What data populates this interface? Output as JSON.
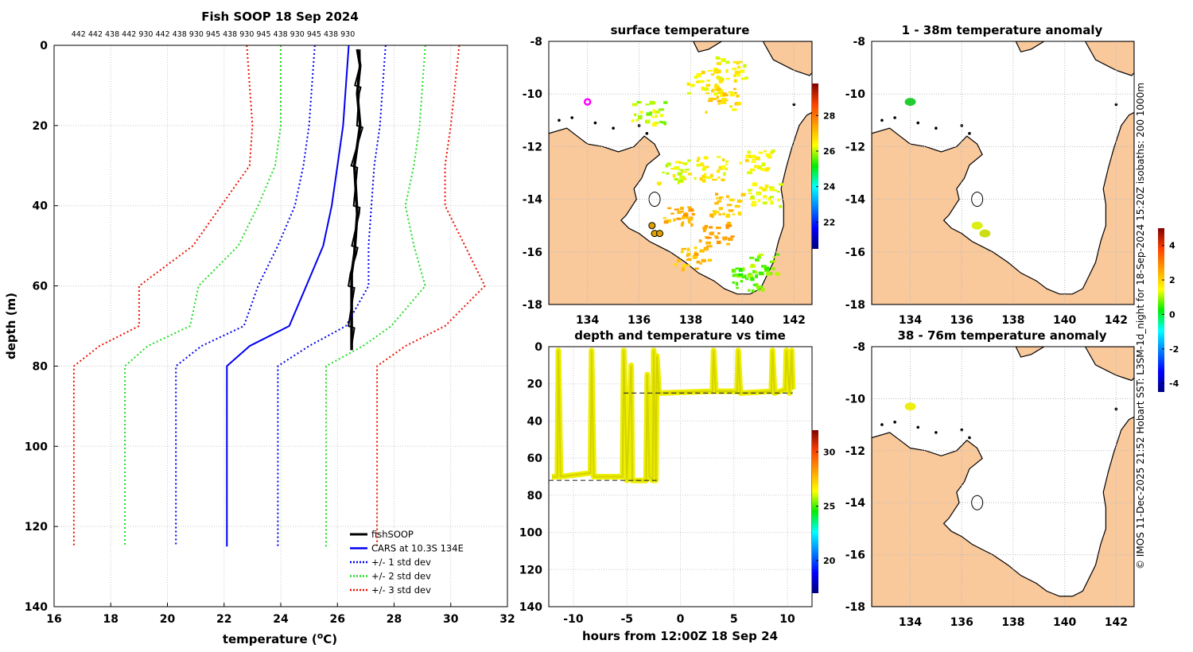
{
  "credit": "© IMOS 11-Dec-2025 21:52 Hobart SST: L3SM-1d_night for 18-Sep-2024 15:20Z isobaths: 200  1000m",
  "colors": {
    "land": "#f9c89b",
    "fish": "#000000",
    "cars": "#0000ee",
    "std1": "#0000ee",
    "std2": "#22dd22",
    "std3": "#ee1100",
    "track": "#eeee00"
  },
  "chart_data": [
    {
      "id": "profile",
      "type": "line",
      "title": "Fish SOOP 18 Sep 2024",
      "serials_text": "442 442 438 442 930 442 438 930 945 438 930 945 438 930 945 438 930",
      "xlabel": "temperature (°C)",
      "xlabel_main": "temperature (",
      "xlabel_unit": "o",
      "xlabel_end": "C)",
      "ylabel": "depth (m)",
      "xlim": [
        16,
        32
      ],
      "ylim": [
        140,
        0
      ],
      "xticks": [
        "16",
        "18",
        "20",
        "22",
        "24",
        "26",
        "28",
        "30",
        "32"
      ],
      "yticks": [
        "0",
        "20",
        "40",
        "60",
        "80",
        "100",
        "120",
        "140"
      ],
      "series": [
        {
          "name": "fishSOOP",
          "legend": "fishSOOP",
          "color": "#000000",
          "dash": "",
          "width": 3.5,
          "points": [
            [
              26.7,
              1
            ],
            [
              26.8,
              5
            ],
            [
              26.7,
              12
            ],
            [
              26.8,
              20
            ],
            [
              26.6,
              30
            ],
            [
              26.7,
              42
            ],
            [
              26.6,
              52
            ],
            [
              26.5,
              57
            ],
            [
              26.5,
              63
            ],
            [
              26.5,
              70
            ],
            [
              26.5,
              76
            ]
          ]
        },
        {
          "name": "CARS",
          "legend": "CARS at 10.3S 134E",
          "color": "#0000ee",
          "dash": "",
          "width": 2,
          "points": [
            [
              26.4,
              0
            ],
            [
              26.2,
              20
            ],
            [
              26.0,
              30
            ],
            [
              25.8,
              40
            ],
            [
              25.5,
              50
            ],
            [
              24.9,
              60
            ],
            [
              24.3,
              70
            ],
            [
              22.9,
              75
            ],
            [
              22.1,
              80
            ],
            [
              22.1,
              125
            ]
          ]
        },
        {
          "name": "std1_low",
          "legend": "+/- 1 std dev",
          "color": "#0000ee",
          "dash": "2,3",
          "width": 2,
          "points": [
            [
              25.2,
              0
            ],
            [
              25.0,
              20
            ],
            [
              24.8,
              30
            ],
            [
              24.5,
              40
            ],
            [
              23.9,
              50
            ],
            [
              23.2,
              60
            ],
            [
              22.7,
              70
            ],
            [
              21.2,
              75
            ],
            [
              20.3,
              80
            ],
            [
              20.3,
              125
            ]
          ]
        },
        {
          "name": "std1_high",
          "legend": "",
          "color": "#0000ee",
          "dash": "2,3",
          "width": 2,
          "points": [
            [
              27.7,
              0
            ],
            [
              27.5,
              20
            ],
            [
              27.3,
              30
            ],
            [
              27.2,
              40
            ],
            [
              27.1,
              50
            ],
            [
              27.1,
              60
            ],
            [
              26.3,
              70
            ],
            [
              25.0,
              75
            ],
            [
              23.9,
              80
            ],
            [
              23.9,
              125
            ]
          ]
        },
        {
          "name": "std2_low",
          "legend": "+/- 2 std dev",
          "color": "#22dd22",
          "dash": "2,3",
          "width": 2,
          "points": [
            [
              24.0,
              0
            ],
            [
              24.0,
              20
            ],
            [
              23.8,
              30
            ],
            [
              23.2,
              40
            ],
            [
              22.5,
              50
            ],
            [
              21.1,
              60
            ],
            [
              20.8,
              70
            ],
            [
              19.3,
              75
            ],
            [
              18.5,
              80
            ],
            [
              18.5,
              125
            ]
          ]
        },
        {
          "name": "std2_high",
          "legend": "",
          "color": "#22dd22",
          "dash": "2,3",
          "width": 2,
          "points": [
            [
              29.1,
              0
            ],
            [
              28.9,
              20
            ],
            [
              28.7,
              30
            ],
            [
              28.4,
              40
            ],
            [
              28.7,
              50
            ],
            [
              29.1,
              60
            ],
            [
              27.9,
              70
            ],
            [
              26.9,
              75
            ],
            [
              25.6,
              80
            ],
            [
              25.6,
              125
            ]
          ]
        },
        {
          "name": "std3_low",
          "legend": "+/- 3 std dev",
          "color": "#ee1100",
          "dash": "2,3",
          "width": 2,
          "points": [
            [
              22.8,
              0
            ],
            [
              23.0,
              20
            ],
            [
              22.9,
              30
            ],
            [
              21.9,
              40
            ],
            [
              20.9,
              50
            ],
            [
              19.0,
              60
            ],
            [
              19.0,
              70
            ],
            [
              17.6,
              75
            ],
            [
              16.7,
              80
            ],
            [
              16.7,
              125
            ]
          ]
        },
        {
          "name": "std3_high",
          "legend": "",
          "color": "#ee1100",
          "dash": "2,3",
          "width": 2,
          "points": [
            [
              30.3,
              0
            ],
            [
              30.0,
              20
            ],
            [
              29.8,
              30
            ],
            [
              29.8,
              40
            ],
            [
              30.5,
              50
            ],
            [
              31.2,
              60
            ],
            [
              29.8,
              70
            ],
            [
              28.4,
              75
            ],
            [
              27.4,
              80
            ],
            [
              27.4,
              125
            ]
          ]
        }
      ]
    },
    {
      "id": "surface",
      "type": "heatmap",
      "title": "surface temperature",
      "xlim": [
        132.5,
        142.7
      ],
      "ylim": [
        -18,
        -8
      ],
      "xticks": [
        "134",
        "136",
        "138",
        "140",
        "142"
      ],
      "yticks": [
        "-8",
        "-10",
        "-12",
        "-14",
        "-16",
        "-18"
      ],
      "colorbar": {
        "range": [
          20.5,
          29.8
        ],
        "ticks": [
          "22",
          "24",
          "26",
          "28"
        ],
        "tick_values": [
          22,
          24,
          26,
          28
        ]
      },
      "marker": [
        134.0,
        -10.3
      ],
      "markers2": [
        [
          136.5,
          -15.0
        ],
        [
          136.6,
          -15.3
        ],
        [
          136.8,
          -15.3
        ]
      ]
    },
    {
      "id": "timeseries",
      "type": "scatter",
      "title": "depth and temperature vs time",
      "xlabel": "hours from 12:00Z 18 Sep 24",
      "xlim": [
        -12.3,
        12.3
      ],
      "ylim": [
        140,
        0
      ],
      "xticks": [
        "-10",
        "-5",
        "0",
        "5",
        "10"
      ],
      "yticks": [
        "0",
        "20",
        "40",
        "60",
        "80",
        "100",
        "120",
        "140"
      ],
      "colorbar": {
        "range": [
          17,
          32
        ],
        "ticks": [
          "20",
          "25",
          "30"
        ],
        "tick_values": [
          20,
          25,
          30
        ]
      },
      "bottom_dashes": [
        [
          -12.3,
          -2.2,
          72
        ]
      ],
      "top_dashes": [
        [
          -5.3,
          10.5,
          25
        ]
      ]
    },
    {
      "id": "anom1",
      "type": "heatmap",
      "title": "1 - 38m temperature anomaly",
      "xlim": [
        132.5,
        142.7
      ],
      "ylim": [
        -18,
        -8
      ],
      "xticks": [
        "134",
        "136",
        "138",
        "140",
        "142"
      ],
      "yticks": [
        "-8",
        "-10",
        "-12",
        "-14",
        "-16",
        "-18"
      ],
      "colorbar": {
        "range": [
          -4.5,
          5
        ],
        "ticks": [
          "-4",
          "-2",
          "0",
          "2",
          "4"
        ],
        "tick_values": [
          -4,
          -2,
          0,
          2,
          4
        ]
      },
      "spots": [
        [
          134.0,
          -10.3,
          "#22cc33"
        ],
        [
          136.6,
          -15.0,
          "#ddee11"
        ],
        [
          136.9,
          -15.3,
          "#ccdd11"
        ]
      ]
    },
    {
      "id": "anom2",
      "type": "heatmap",
      "title": "38 - 76m temperature anomaly",
      "xlim": [
        132.5,
        142.7
      ],
      "ylim": [
        -18,
        -8
      ],
      "xticks": [
        "134",
        "136",
        "138",
        "140",
        "142"
      ],
      "yticks": [
        "-8",
        "-10",
        "-12",
        "-14",
        "-16",
        "-18"
      ],
      "spots": [
        [
          134.0,
          -10.3,
          "#eeee11"
        ]
      ]
    }
  ]
}
